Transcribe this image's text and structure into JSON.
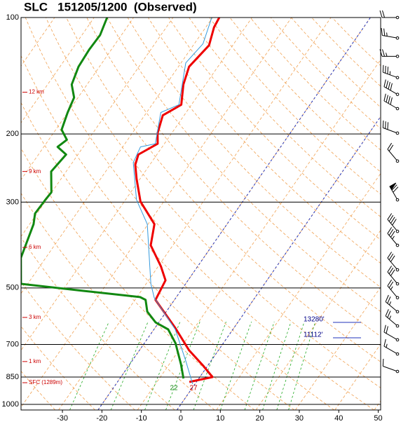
{
  "chart_data": {
    "type": "skewt",
    "title": "SLC   151205/1200  (Observed)",
    "xlim": [
      -39.5,
      51.6
    ],
    "ylim": [
      1034,
      100
    ],
    "xticks": [
      -30,
      -20,
      -10,
      0,
      10,
      20,
      30,
      40,
      50
    ],
    "yticks": [
      100,
      200,
      300,
      500,
      700,
      850,
      1000
    ],
    "series": [
      {
        "color": "#ee0000",
        "pressure": [
          875,
          850,
          795,
          725,
          634,
          537,
          478,
          440,
          388,
          342,
          299,
          261,
          240,
          226,
          212,
          199,
          179,
          168,
          149,
          134,
          118,
          106,
          100
        ],
        "values": [
          -1.8,
          3.2,
          -1.1,
          -7.4,
          -14.9,
          -24.8,
          -25.7,
          -29.3,
          -35.6,
          -38.4,
          -45.9,
          -50.9,
          -53.7,
          -54.7,
          -51.7,
          -53.6,
          -55.4,
          -52.6,
          -55.6,
          -57.3,
          -56.0,
          -57.9,
          -58.3
        ]
      },
      {
        "color": "#118811",
        "pressure": [
          857,
          788,
          695,
          640,
          614,
          576,
          537,
          528,
          509,
          488,
          418,
          342,
          321,
          296,
          283,
          250,
          226,
          216,
          207,
          195,
          176,
          161,
          149,
          134,
          121,
          111,
          100
        ],
        "values": [
          -3.9,
          -7.0,
          -12.1,
          -16.4,
          -20.8,
          -24.8,
          -27.3,
          -29.2,
          -44.5,
          -61.7,
          -66.3,
          -69.0,
          -70.5,
          -70.3,
          -70.1,
          -73.8,
          -73.0,
          -76.5,
          -75.4,
          -78.5,
          -80.0,
          -81.0,
          -83.9,
          -85.3,
          -85.6,
          -85.4,
          -86.7
        ]
      },
      {
        "color": "#3399dd",
        "pressure": [
          886,
          772,
          640,
          530,
          488,
          342,
          296,
          237,
          216,
          212,
          176,
          168,
          131,
          117,
          100
        ],
        "values": [
          -0.6,
          -6.4,
          -14.6,
          -25.5,
          -28.8,
          -40.2,
          -47.2,
          -54.6,
          -55.5,
          -52.3,
          -56.4,
          -53.2,
          -58.8,
          -57.8,
          -60.2
        ]
      }
    ],
    "heights": [
      {
        "label": "12 km",
        "pressure": 156
      },
      {
        "label": "9 km",
        "pressure": 250
      },
      {
        "label": "6 km",
        "pressure": 393
      },
      {
        "label": "3 km",
        "pressure": 596
      },
      {
        "label": "1 km",
        "pressure": 775
      },
      {
        "label": "SFC (1289m)",
        "pressure": 879
      }
    ],
    "levels": [
      {
        "label": "13280'",
        "pressure": 614
      },
      {
        "label": "11112'",
        "pressure": 673
      }
    ],
    "surface_dewpoint_label": "22",
    "surface_temperature_label": "27",
    "winds": [
      {
        "pressure": 100,
        "direction": 270,
        "speed": 20
      },
      {
        "pressure": 113,
        "direction": 280,
        "speed": 25
      },
      {
        "pressure": 126,
        "direction": 270,
        "speed": 25
      },
      {
        "pressure": 143,
        "direction": 290,
        "speed": 35
      },
      {
        "pressure": 158,
        "direction": 300,
        "speed": 40
      },
      {
        "pressure": 172,
        "direction": 300,
        "speed": 40
      },
      {
        "pressure": 199,
        "direction": 290,
        "speed": 30
      },
      {
        "pressure": 235,
        "direction": 320,
        "speed": 20
      },
      {
        "pressure": 296,
        "direction": 330,
        "speed": 70
      },
      {
        "pressure": 357,
        "direction": 320,
        "speed": 40
      },
      {
        "pressure": 388,
        "direction": 320,
        "speed": 35
      },
      {
        "pressure": 449,
        "direction": 320,
        "speed": 30
      },
      {
        "pressure": 488,
        "direction": 320,
        "speed": 30
      },
      {
        "pressure": 530,
        "direction": 320,
        "speed": 25
      },
      {
        "pressure": 576,
        "direction": 310,
        "speed": 25
      },
      {
        "pressure": 627,
        "direction": 310,
        "speed": 25
      },
      {
        "pressure": 681,
        "direction": 300,
        "speed": 20
      },
      {
        "pressure": 741,
        "direction": 300,
        "speed": 15
      },
      {
        "pressure": 822,
        "direction": 290,
        "speed": 10
      }
    ]
  }
}
